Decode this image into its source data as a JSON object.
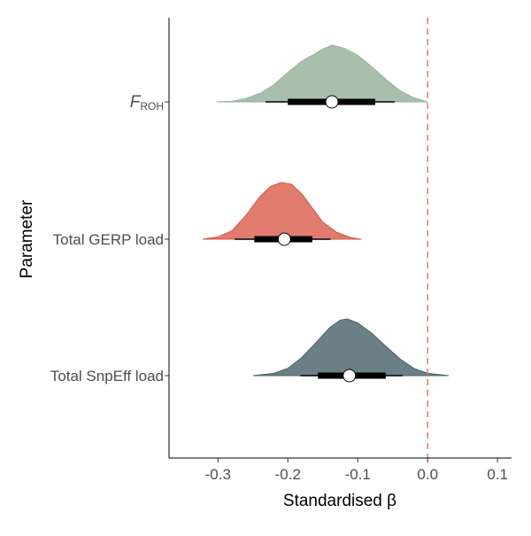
{
  "chart_data": {
    "type": "halfeye",
    "xlabel": "Standardised β",
    "ylabel": "Parameter",
    "xlim": [
      -0.37,
      0.12
    ],
    "xticks": [
      -0.3,
      -0.2,
      -0.1,
      0.0,
      0.1
    ],
    "xtick_labels": [
      "-0.3",
      "-0.2",
      "-0.1",
      "0.0",
      "0.1"
    ],
    "reference_line": {
      "x": 0.0,
      "color": "#e07b6e",
      "style": "dashed"
    },
    "grid": false,
    "legend": "none",
    "categories": [
      {
        "label_main": "F",
        "label_sub": "ROH",
        "fill": "#a8c0ab",
        "stroke": "#95b09a",
        "median": -0.137,
        "interval_66": [
          -0.2,
          -0.075
        ],
        "interval_95": [
          -0.232,
          -0.047
        ],
        "density_range": [
          -0.302,
          0.0
        ],
        "density_points": [
          [
            -0.302,
            0.0
          ],
          [
            -0.28,
            0.01
          ],
          [
            -0.26,
            0.06
          ],
          [
            -0.24,
            0.15
          ],
          [
            -0.22,
            0.3
          ],
          [
            -0.2,
            0.52
          ],
          [
            -0.18,
            0.72
          ],
          [
            -0.165,
            0.82
          ],
          [
            -0.15,
            0.93
          ],
          [
            -0.137,
            1.0
          ],
          [
            -0.12,
            0.95
          ],
          [
            -0.1,
            0.82
          ],
          [
            -0.08,
            0.62
          ],
          [
            -0.06,
            0.4
          ],
          [
            -0.04,
            0.2
          ],
          [
            -0.02,
            0.07
          ],
          [
            0.0,
            0.0
          ]
        ]
      },
      {
        "label_main": "Total GERP load",
        "label_sub": "",
        "fill": "#e07b6e",
        "stroke": "#d2594b",
        "median": -0.205,
        "interval_66": [
          -0.248,
          -0.165
        ],
        "interval_95": [
          -0.276,
          -0.139
        ],
        "density_range": [
          -0.322,
          -0.095
        ],
        "density_points": [
          [
            -0.322,
            0.0
          ],
          [
            -0.3,
            0.04
          ],
          [
            -0.28,
            0.15
          ],
          [
            -0.26,
            0.42
          ],
          [
            -0.24,
            0.75
          ],
          [
            -0.225,
            0.93
          ],
          [
            -0.21,
            1.0
          ],
          [
            -0.195,
            0.97
          ],
          [
            -0.18,
            0.8
          ],
          [
            -0.165,
            0.55
          ],
          [
            -0.15,
            0.3
          ],
          [
            -0.13,
            0.12
          ],
          [
            -0.11,
            0.03
          ],
          [
            -0.095,
            0.0
          ]
        ]
      },
      {
        "label_main": "Total SnpEff load",
        "label_sub": "",
        "fill": "#6b7f86",
        "stroke": "#4c6269",
        "median": -0.112,
        "interval_66": [
          -0.157,
          -0.06
        ],
        "interval_95": [
          -0.182,
          -0.036
        ],
        "density_range": [
          -0.25,
          0.03
        ],
        "density_points": [
          [
            -0.25,
            0.0
          ],
          [
            -0.22,
            0.04
          ],
          [
            -0.2,
            0.13
          ],
          [
            -0.18,
            0.32
          ],
          [
            -0.16,
            0.58
          ],
          [
            -0.14,
            0.85
          ],
          [
            -0.125,
            0.98
          ],
          [
            -0.115,
            1.0
          ],
          [
            -0.1,
            0.93
          ],
          [
            -0.08,
            0.75
          ],
          [
            -0.06,
            0.52
          ],
          [
            -0.04,
            0.3
          ],
          [
            -0.02,
            0.13
          ],
          [
            0.0,
            0.04
          ],
          [
            0.03,
            0.0
          ]
        ]
      }
    ]
  }
}
